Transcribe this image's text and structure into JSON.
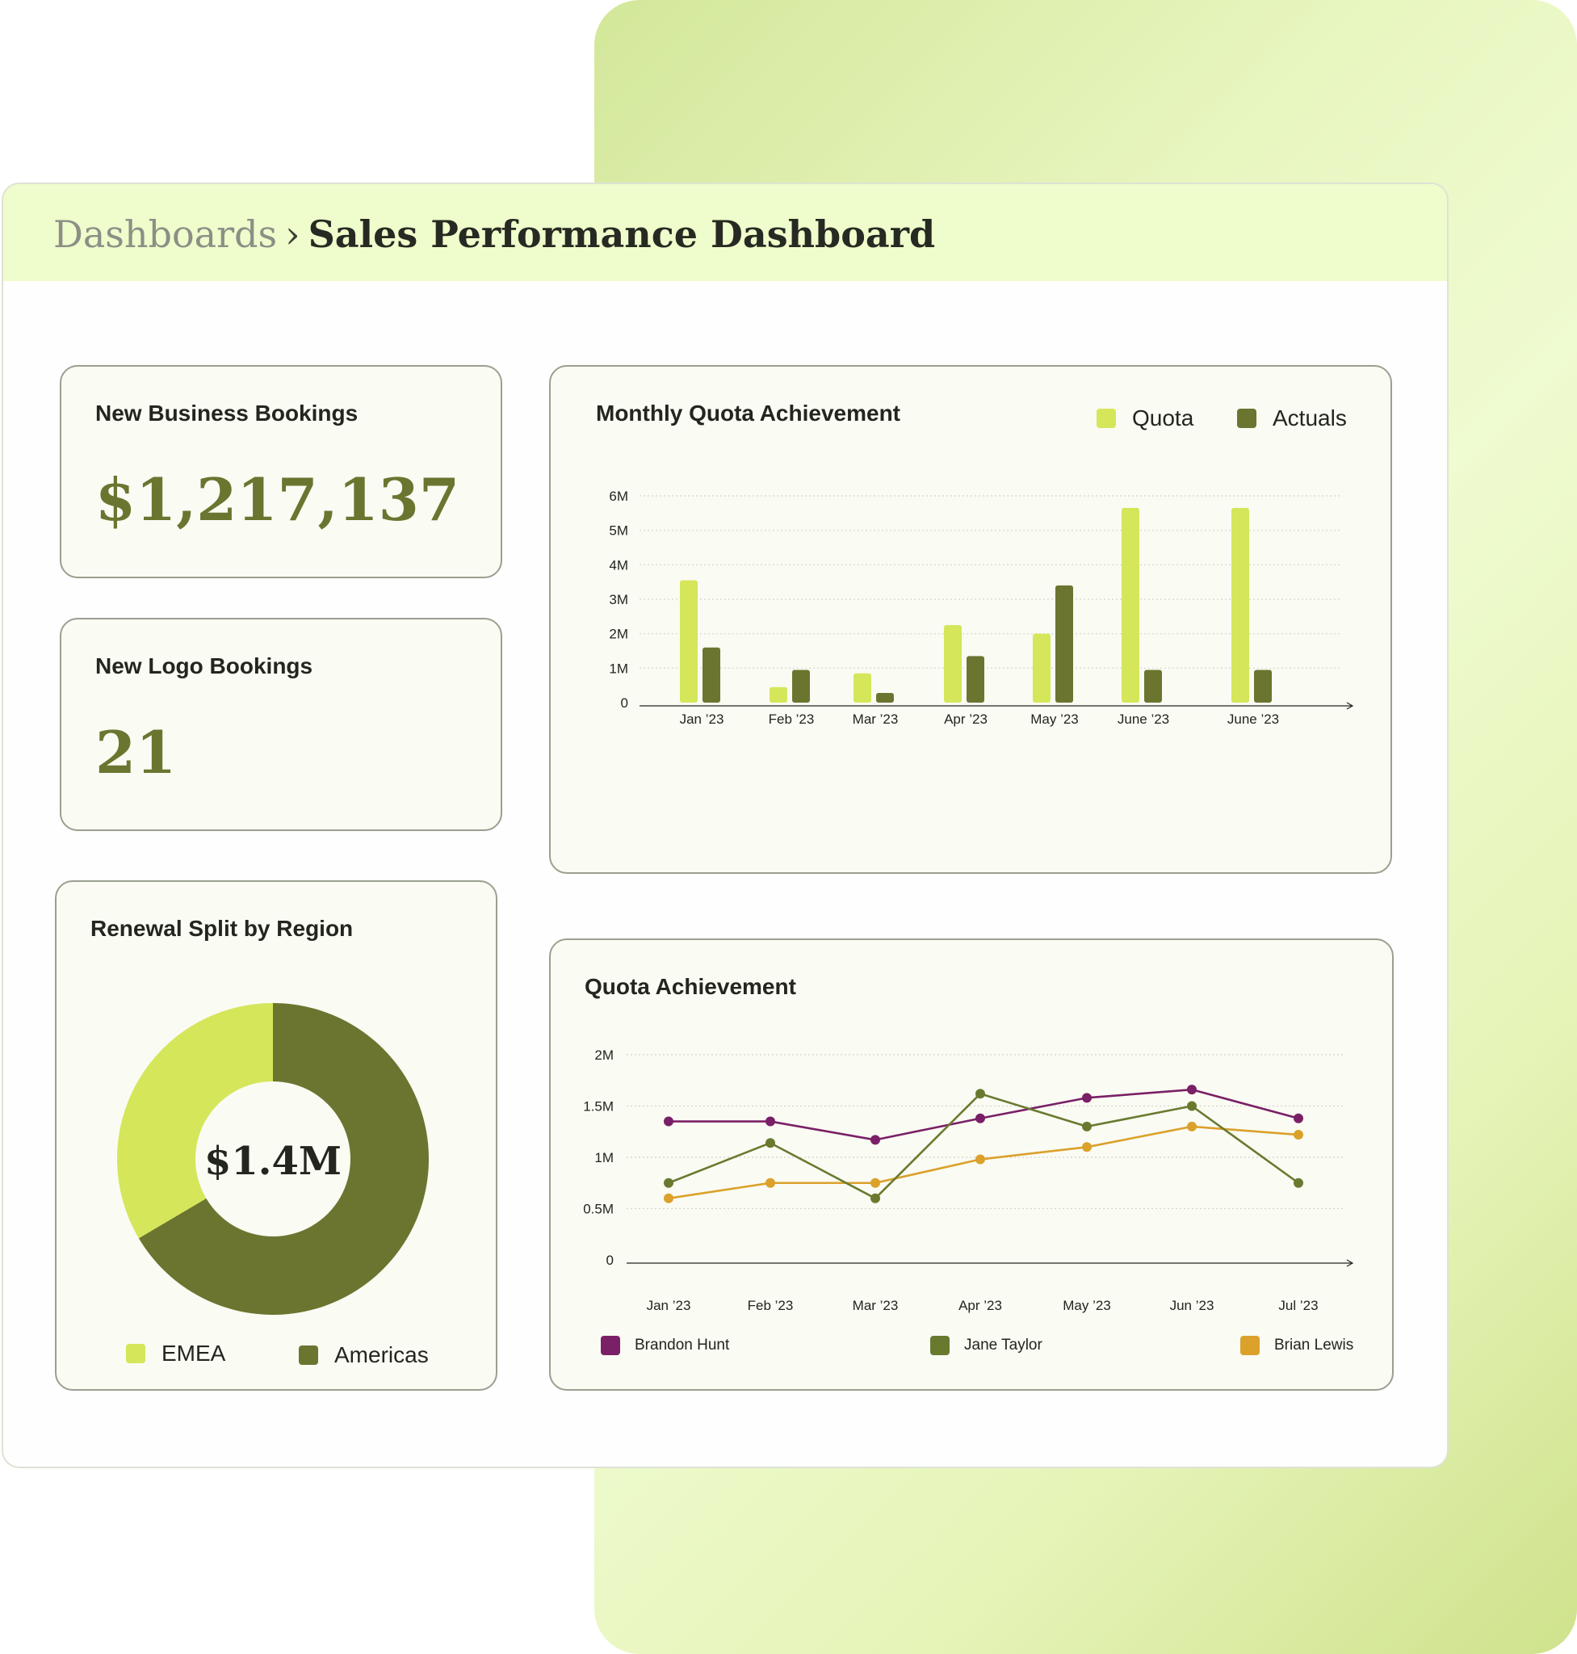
{
  "breadcrumb": {
    "parent": "Dashboards",
    "separator": "›",
    "current": "Sales Performance Dashboard"
  },
  "kpis": {
    "new_business": {
      "title": "New Business Bookings",
      "value": "$1,217,137"
    },
    "new_logo": {
      "title": "New Logo Bookings",
      "value": "21"
    }
  },
  "renewal": {
    "title": "Renewal Split by Region",
    "center_label": "$1.4M",
    "legend": [
      "EMEA",
      "Americas"
    ]
  },
  "monthly": {
    "title": "Monthly Quota Achievement",
    "legend": [
      "Quota",
      "Actuals"
    ]
  },
  "quota": {
    "title": "Quota Achievement",
    "legend": [
      "Brandon Hunt",
      "Jane Taylor",
      "Brian Lewis"
    ]
  },
  "colors": {
    "light_green": "#d5e65a",
    "dark_green": "#6b7530",
    "purple": "#7a2066",
    "olive": "#697a2f",
    "orange": "#dba12b",
    "header_bg": "#effccb",
    "panel_bg": "#fafbf3"
  },
  "chart_data": [
    {
      "type": "bar",
      "title": "Monthly Quota Achievement",
      "categories": [
        "Jan ’23",
        "Feb ’23",
        "Mar ’23",
        "Apr ’23",
        "May ’23",
        "June ’23",
        "June ’23"
      ],
      "series": [
        {
          "name": "Quota",
          "values": [
            3.55,
            0.45,
            0.85,
            2.25,
            2.0,
            5.65,
            5.65
          ]
        },
        {
          "name": "Actuals",
          "values": [
            1.6,
            0.95,
            0.28,
            1.35,
            3.4,
            0.95,
            0.95
          ]
        }
      ],
      "yticks": [
        "0",
        "1M",
        "2M",
        "3M",
        "4M",
        "5M",
        "6M"
      ],
      "ylim": [
        0,
        6
      ],
      "grid": true,
      "legend_position": "top-right"
    },
    {
      "type": "line",
      "title": "Quota Achievement",
      "categories": [
        "Jan ’23",
        "Feb ’23",
        "Mar ’23",
        "Apr ’23",
        "May ’23",
        "Jun ’23",
        "Jul ’23"
      ],
      "series": [
        {
          "name": "Brandon Hunt",
          "values": [
            1.35,
            1.35,
            1.17,
            1.38,
            1.58,
            1.66,
            1.38
          ]
        },
        {
          "name": "Jane Taylor",
          "values": [
            0.75,
            1.14,
            0.6,
            1.62,
            1.3,
            1.5,
            0.75
          ]
        },
        {
          "name": "Brian Lewis",
          "values": [
            0.6,
            0.75,
            0.75,
            0.98,
            1.1,
            1.3,
            1.22
          ]
        }
      ],
      "yticks": [
        "0",
        "0.5M",
        "1M",
        "1.5M",
        "2M"
      ],
      "ylim": [
        0,
        2
      ],
      "grid": true,
      "legend_position": "bottom"
    },
    {
      "type": "pie",
      "title": "Renewal Split by Region",
      "labels": [
        "EMEA",
        "Americas"
      ],
      "values": [
        33.5,
        66.5
      ],
      "center_label": "$1.4M",
      "legend_position": "bottom"
    }
  ]
}
